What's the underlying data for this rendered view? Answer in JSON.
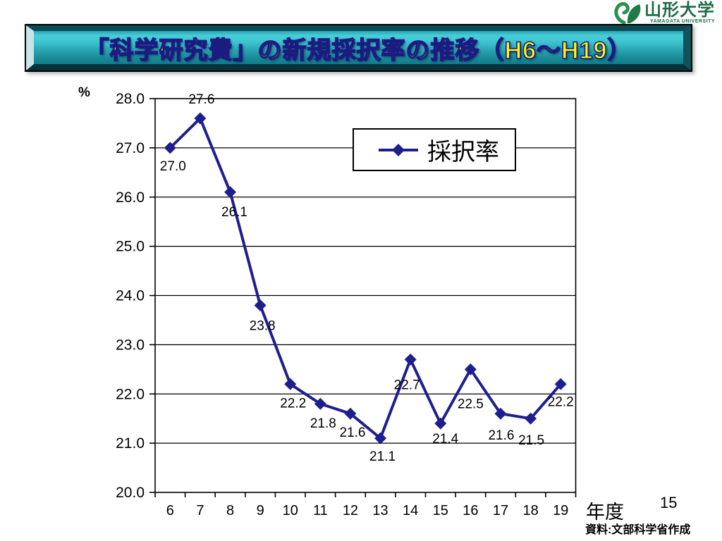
{
  "page": {
    "background_color": "#ffffff"
  },
  "logo": {
    "university_name": "山形大学",
    "university_name_en": "YAMAGATA UNIVERSITY",
    "text_color": "#1e6a46",
    "mark_color": "#2b8f4e"
  },
  "title_banner": {
    "text": "「科学研究費」の新規採択率の推移（H6～H19）",
    "text_color": "#ffff00",
    "outline_color": "#1b1b80",
    "background_top_color": "#47ced9",
    "background_bottom_color": "#127c89"
  },
  "chart_data": {
    "type": "line",
    "title": "「科学研究費」の新規採択率の推移（H6～H19）",
    "categories": [
      "6",
      "7",
      "8",
      "9",
      "10",
      "11",
      "12",
      "13",
      "14",
      "15",
      "16",
      "17",
      "18",
      "19"
    ],
    "series": [
      {
        "name": "採択率",
        "values": [
          27.0,
          27.6,
          26.1,
          23.8,
          22.2,
          21.8,
          21.6,
          21.1,
          22.7,
          21.4,
          22.5,
          21.6,
          21.5,
          22.2
        ]
      }
    ],
    "point_labels": [
      "27.0",
      "27.6",
      "26.1",
      "23.8",
      "22.2",
      "21.8",
      "21.6",
      "21.1",
      "22.7",
      "21.4",
      "22.5",
      "21.6",
      "21.5",
      "22.2"
    ],
    "ylabel_unit": "%",
    "xlabel": "年度",
    "ylim": [
      20.0,
      28.0
    ],
    "ytick_step": 1.0,
    "ytick_labels": [
      "20.0",
      "21.0",
      "22.0",
      "23.0",
      "24.0",
      "25.0",
      "26.0",
      "27.0",
      "28.0"
    ],
    "grid": true,
    "legend": {
      "label": "採択率",
      "position": "top-center-inside"
    },
    "line_color": "#1e1e8f",
    "marker": "diamond",
    "grid_color": "#000000",
    "label_dx": [
      4,
      2,
      6,
      3,
      4,
      4,
      3,
      3,
      -5,
      7,
      0,
      1,
      1,
      0
    ],
    "label_dy": [
      25,
      -28,
      27,
      28,
      26,
      27,
      26,
      25,
      35,
      21,
      48,
      30,
      30,
      24
    ]
  },
  "footer": {
    "xaxis_title": "年度",
    "page_number": "15",
    "source": "資料:文部科学省作成"
  }
}
